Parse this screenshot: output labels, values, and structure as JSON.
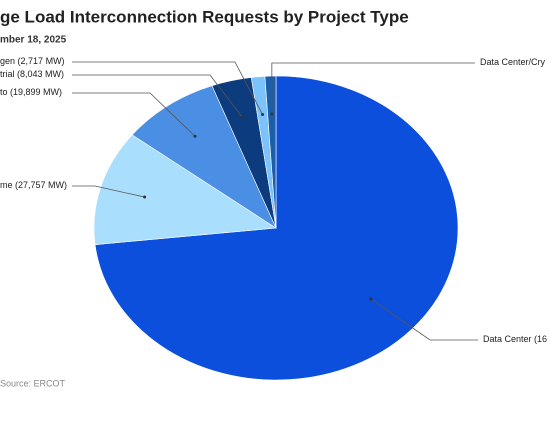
{
  "chart_data": {
    "type": "pie",
    "title": "ge Load Interconnection Requests by Project Type",
    "subtitle": "mber 18, 2025",
    "source": "Source: ERCOT",
    "categories": [
      "Data Center",
      "me",
      "to",
      "trial",
      "gen",
      "Data Center/Cry"
    ],
    "values": [
      166000,
      27757,
      19899,
      8043,
      2717,
      2200
    ],
    "value_labels": [
      "(16",
      "(27,757 MW)",
      "(19,899 MW)",
      "(8,043 MW)",
      "(2,717 MW)",
      null
    ],
    "colors": [
      "#0b4fdc",
      "#a9defd",
      "#4a8fe3",
      "#0c3c7e",
      "#7cc2fb",
      "#1d5ea9"
    ]
  }
}
